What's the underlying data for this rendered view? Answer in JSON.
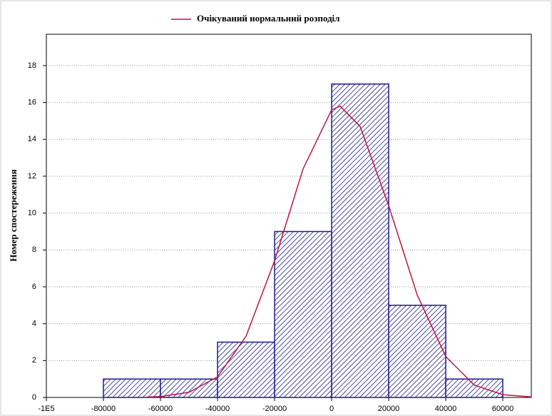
{
  "chart_data": {
    "type": "histogram",
    "ylabel": "Номер спостереження",
    "bins": [
      -80000,
      -60000,
      -40000,
      -20000,
      0,
      20000,
      40000,
      60000
    ],
    "values": [
      1,
      1,
      3,
      9,
      17,
      5,
      1
    ],
    "color": "#1c1c8c",
    "hatch": true,
    "series": [
      {
        "name": "Очікуваний нормальний розподіл",
        "color": "#c0143c",
        "x": [
          -65000,
          -60000,
          -50000,
          -40000,
          -30000,
          -20000,
          -10000,
          0,
          3000,
          10000,
          20000,
          30000,
          40000,
          50000,
          60000,
          70000
        ],
        "values": [
          0.02,
          0.05,
          0.28,
          1.12,
          3.32,
          7.41,
          12.4,
          15.6,
          15.8,
          14.7,
          10.4,
          5.56,
          2.22,
          0.67,
          0.15,
          0.03
        ]
      }
    ],
    "xlim": [
      -100000,
      70000
    ],
    "xticks": [
      {
        "value": -100000,
        "label": "-1E5"
      },
      -80000,
      -60000,
      -40000,
      -20000,
      0,
      20000,
      40000,
      60000
    ],
    "ylim": [
      0,
      19.7
    ],
    "yticks": [
      0,
      2,
      4,
      6,
      8,
      10,
      12,
      14,
      16,
      18
    ],
    "grid": true,
    "legend": "top"
  }
}
